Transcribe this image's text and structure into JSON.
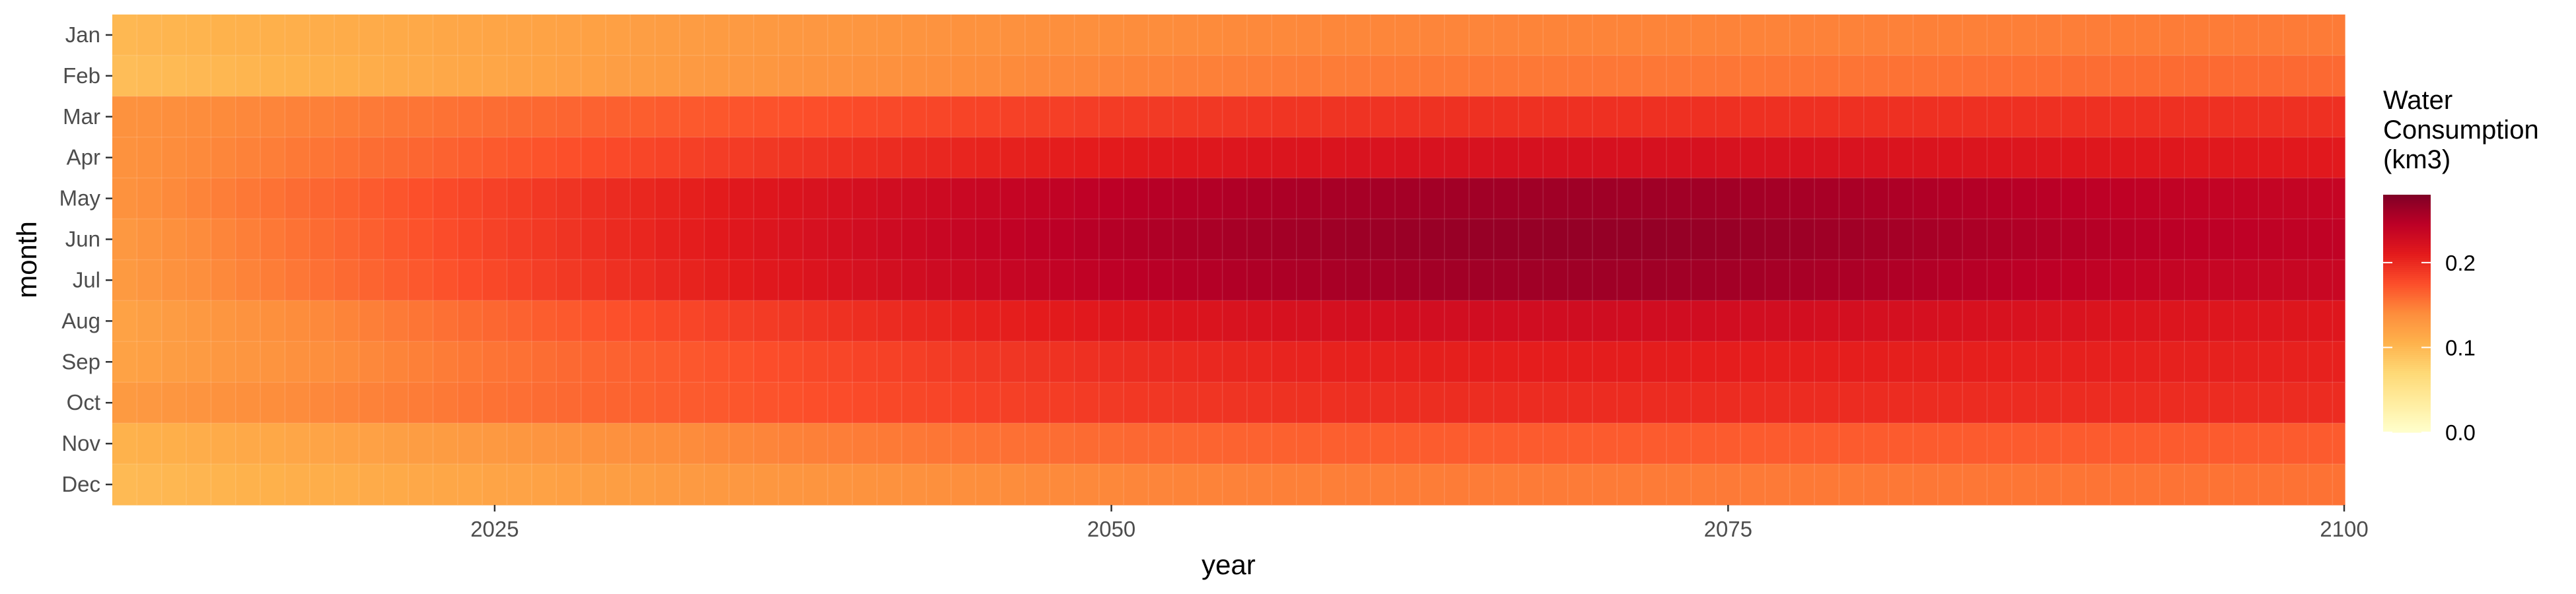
{
  "chart_data": {
    "type": "heatmap",
    "xlabel": "year",
    "ylabel": "month",
    "x_start": 2010,
    "x_end": 2100,
    "x_ticks": [
      2025,
      2050,
      2075,
      2100
    ],
    "x_tick_labels": [
      "2025",
      "2050",
      "2075",
      "2100"
    ],
    "months": [
      "Jan",
      "Feb",
      "Mar",
      "Apr",
      "May",
      "Jun",
      "Jul",
      "Aug",
      "Sep",
      "Oct",
      "Nov",
      "Dec"
    ],
    "legend": {
      "title_lines": [
        "Water",
        "Consumption",
        "(km3)"
      ],
      "ticks": [
        0.0,
        0.1,
        0.2
      ],
      "tick_labels": [
        "0.0",
        "0.1",
        "0.2"
      ],
      "range": [
        0.0,
        0.28
      ],
      "palette": [
        "#ffffcc",
        "#ffeda0",
        "#fed976",
        "#feb24c",
        "#fd8d3c",
        "#fc4e2a",
        "#e31a1c",
        "#bd0026",
        "#800026"
      ]
    },
    "monthly_peak": [
      0.145,
      0.152,
      0.195,
      0.222,
      0.262,
      0.268,
      0.262,
      0.228,
      0.208,
      0.198,
      0.168,
      0.15
    ],
    "monthly_start": [
      0.1,
      0.095,
      0.135,
      0.135,
      0.135,
      0.13,
      0.128,
      0.12,
      0.12,
      0.128,
      0.105,
      0.098
    ],
    "monthly_end": [
      0.15,
      0.16,
      0.195,
      0.212,
      0.238,
      0.242,
      0.235,
      0.215,
      0.205,
      0.198,
      0.168,
      0.155
    ],
    "peak_year": 2070,
    "grid": true,
    "legend_position": "right"
  }
}
